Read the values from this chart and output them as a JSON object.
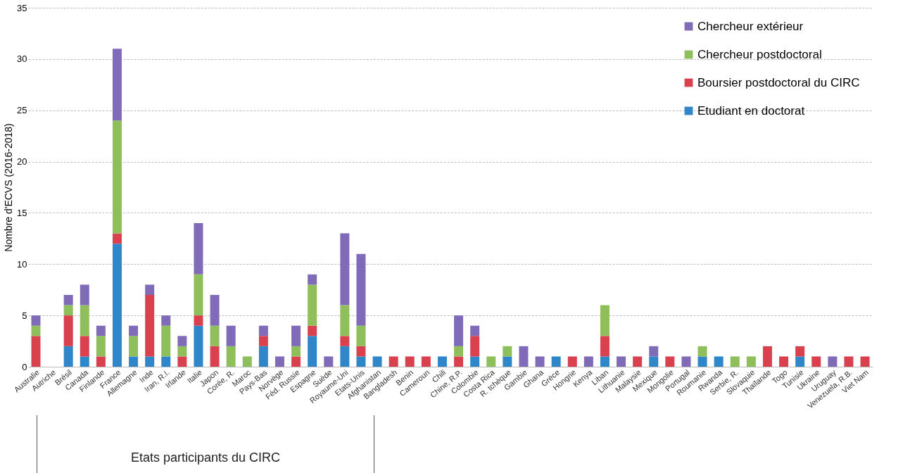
{
  "chart_data": {
    "type": "bar",
    "stacked": true,
    "ylabel": "Nombre d'ECVS (2016-2018)",
    "categories": [
      "Australie",
      "Autriche",
      "Brésil",
      "Canada",
      "Finlande",
      "France",
      "Allemagne",
      "Inde",
      "Iran, R.I.",
      "Irlande",
      "Italie",
      "Japon",
      "Corée, R.",
      "Maroc",
      "Pays-Bas",
      "Norvège",
      "Féd. Russie",
      "Espagne",
      "Suède",
      "Royaume-Uni",
      "Etats-Unis",
      "Afghanistan",
      "Bangladesh",
      "Benin",
      "Cameroun",
      "Chili",
      "Chine, R.P.",
      "Colombie",
      "Costa Rica",
      "R. tchèque",
      "Gambie",
      "Ghana",
      "Grèce",
      "Hongrie",
      "Kenya",
      "Liban",
      "Lithuanie",
      "Malaysie",
      "Mexique",
      "Mongolie",
      "Portugal",
      "Roumanie",
      "Rwanda",
      "Serbie, R.",
      "Slovaquie",
      "Thaïlande",
      "Togo",
      "Tunisie",
      "Ukraine",
      "Uruguay",
      "Venezuela, R.B.",
      "Viet Nam"
    ],
    "series": [
      {
        "name": "Etudiant en doctorat",
        "color": "#2f86c8",
        "values": [
          0,
          0,
          2,
          1,
          0,
          12,
          1,
          1,
          1,
          0,
          4,
          0,
          0,
          0,
          2,
          0,
          0,
          3,
          0,
          2,
          1,
          1,
          0,
          0,
          0,
          1,
          0,
          1,
          0,
          1,
          0,
          0,
          1,
          0,
          0,
          1,
          0,
          0,
          1,
          0,
          0,
          1,
          1,
          0,
          0,
          0,
          0,
          1,
          0,
          0,
          0,
          0
        ]
      },
      {
        "name": "Boursier postdoctoral du CIRC",
        "color": "#d9414f",
        "values": [
          3,
          0,
          3,
          2,
          1,
          1,
          0,
          6,
          0,
          1,
          1,
          2,
          0,
          0,
          1,
          0,
          1,
          1,
          0,
          1,
          1,
          0,
          1,
          1,
          1,
          0,
          1,
          2,
          0,
          0,
          0,
          0,
          0,
          1,
          0,
          2,
          0,
          1,
          0,
          1,
          0,
          0,
          0,
          0,
          0,
          2,
          1,
          1,
          1,
          0,
          1,
          1
        ]
      },
      {
        "name": "Chercheur postdoctoral",
        "color": "#8fbf5a",
        "values": [
          1,
          0,
          1,
          3,
          2,
          11,
          2,
          0,
          3,
          1,
          4,
          2,
          2,
          1,
          0,
          0,
          1,
          4,
          0,
          3,
          2,
          0,
          0,
          0,
          0,
          0,
          1,
          0,
          1,
          1,
          0,
          0,
          0,
          0,
          0,
          3,
          0,
          0,
          0,
          0,
          0,
          1,
          0,
          1,
          1,
          0,
          0,
          0,
          0,
          0,
          0,
          0
        ]
      },
      {
        "name": "Chercheur extérieur",
        "color": "#7f6bb8",
        "values": [
          1,
          0,
          1,
          2,
          1,
          7,
          1,
          1,
          1,
          1,
          5,
          3,
          2,
          0,
          1,
          1,
          2,
          1,
          1,
          7,
          7,
          0,
          0,
          0,
          0,
          0,
          3,
          1,
          0,
          0,
          2,
          1,
          0,
          0,
          1,
          0,
          1,
          0,
          1,
          0,
          1,
          0,
          0,
          0,
          0,
          0,
          0,
          0,
          0,
          1,
          0,
          0
        ]
      }
    ],
    "ylim": [
      0,
      35
    ],
    "yticks": [
      0,
      5,
      10,
      15,
      20,
      25,
      30,
      35
    ],
    "grid": "y",
    "legend": "top right",
    "annotations": [
      "Etats participants du CIRC"
    ]
  }
}
